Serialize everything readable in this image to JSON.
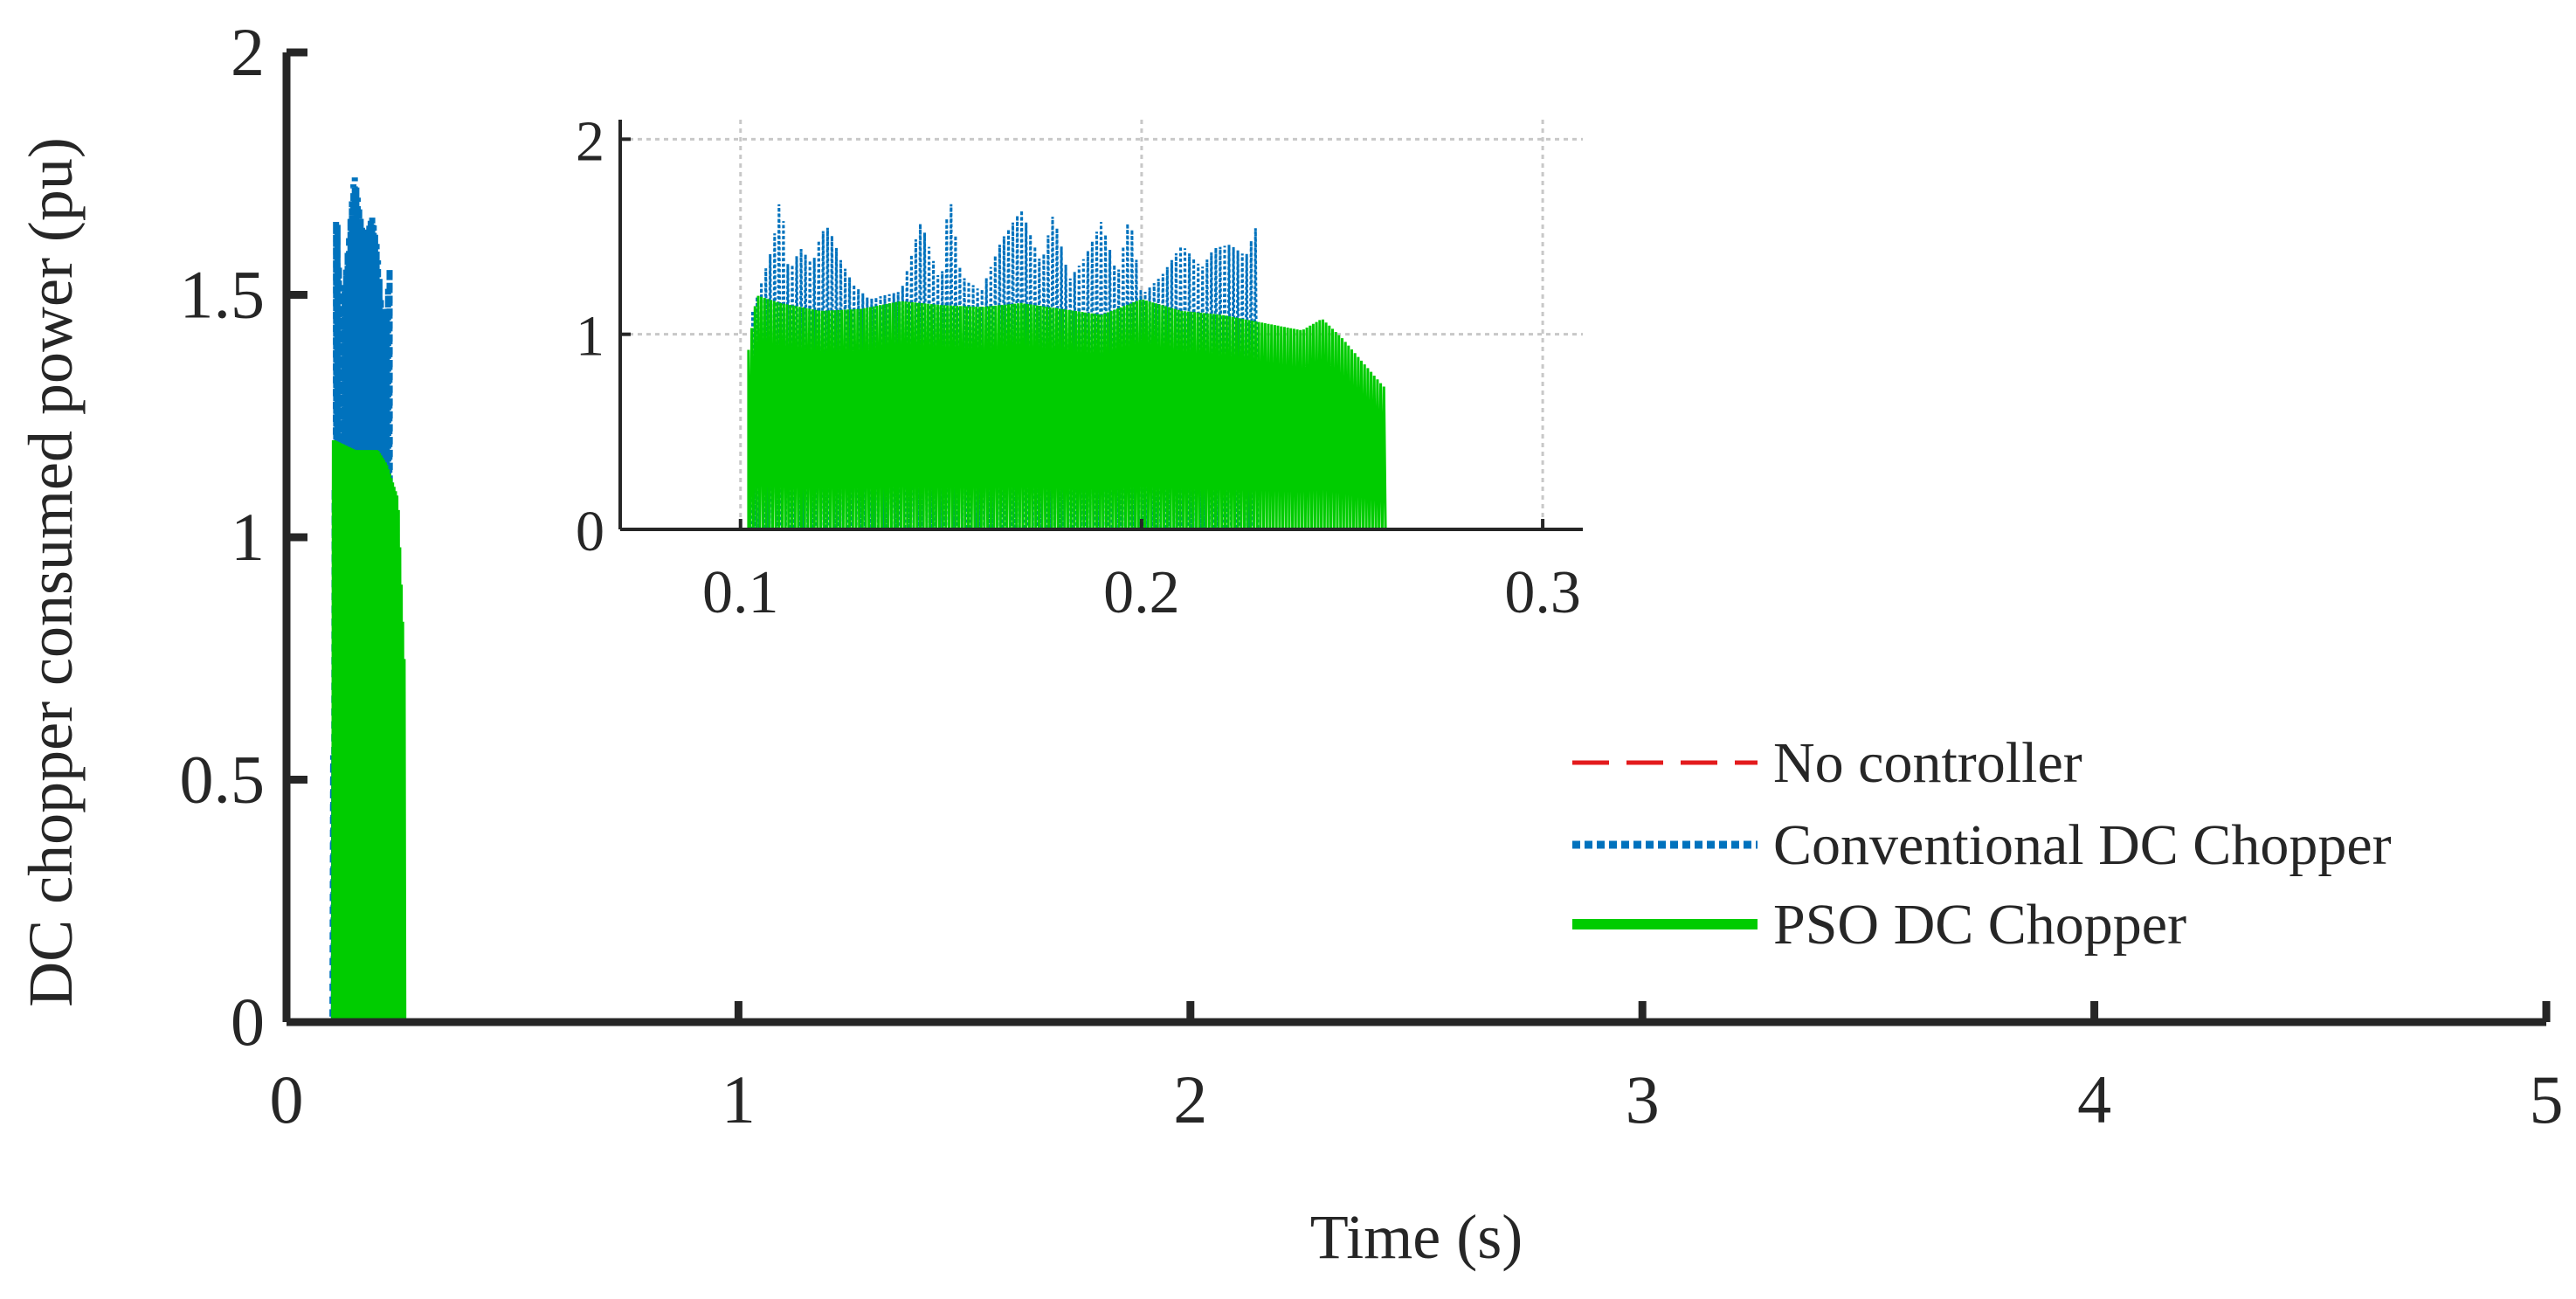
{
  "chart_data": [
    {
      "type": "line",
      "role": "main",
      "title": "",
      "xlabel": "Time (s)",
      "ylabel": "DC chopper consumed power (pu)",
      "xlim": [
        0,
        5
      ],
      "ylim": [
        0,
        2
      ],
      "xticks": [
        0,
        1,
        2,
        3,
        4,
        5
      ],
      "yticks": [
        0,
        0.5,
        1,
        1.5,
        2
      ],
      "xtick_labels": [
        "0",
        "1",
        "2",
        "3",
        "4",
        "5"
      ],
      "ytick_labels": [
        "0",
        "0.5",
        "1",
        "1.5",
        "2"
      ],
      "grid": false,
      "legend": {
        "position": "bottom-right",
        "entries": [
          "No controller",
          "Conventional DC Chopper",
          "PSO DC Chopper"
        ]
      },
      "series": [
        {
          "name": "No controller",
          "color": "#e31a1c",
          "style": "dashed",
          "x": [
            0,
            5
          ],
          "y": [
            0,
            0
          ]
        },
        {
          "name": "Conventional DC Chopper",
          "color": "#0072bd",
          "style": "dotted",
          "x": [
            0,
            0.1,
            0.11,
            0.12,
            0.13,
            0.15,
            0.17,
            0.19,
            0.2,
            0.21,
            0.22,
            0.23,
            0.231,
            5
          ],
          "y": [
            0,
            0,
            1.72,
            1.45,
            1.53,
            1.75,
            1.62,
            1.66,
            1.6,
            1.48,
            1.45,
            1.58,
            0,
            0
          ]
        },
        {
          "name": "PSO DC Chopper",
          "color": "#00cc00",
          "style": "solid",
          "x": [
            0,
            0.102,
            0.105,
            0.15,
            0.2,
            0.22,
            0.245,
            0.26,
            0.262,
            5
          ],
          "y": [
            0,
            0,
            1.2,
            1.18,
            1.18,
            1.15,
            1.08,
            0.72,
            0,
            0
          ]
        }
      ]
    },
    {
      "type": "line",
      "role": "inset",
      "xlim": [
        0.07,
        0.31
      ],
      "ylim": [
        0,
        2.1
      ],
      "xticks": [
        0.1,
        0.2,
        0.3
      ],
      "yticks": [
        0,
        1,
        2
      ],
      "xtick_labels": [
        "0.1",
        "0.2",
        "0.3"
      ],
      "ytick_labels": [
        "0",
        "1",
        "2"
      ],
      "grid": true,
      "series": [
        {
          "name": "No controller",
          "color": "#e31a1c",
          "style": "dashed",
          "x": [
            0.07,
            0.31
          ],
          "y": [
            0,
            0
          ]
        },
        {
          "name": "Conventional DC Chopper",
          "color": "#0072bd",
          "style": "dotted",
          "x": [
            0.103,
            0.108,
            0.11,
            0.112,
            0.115,
            0.118,
            0.12,
            0.122,
            0.125,
            0.128,
            0.132,
            0.14,
            0.145,
            0.15,
            0.152,
            0.155,
            0.16,
            0.165,
            0.17,
            0.175,
            0.178,
            0.182,
            0.186,
            0.19,
            0.194,
            0.197,
            0.2,
            0.205,
            0.21,
            0.215,
            0.218,
            0.222,
            0.226,
            0.229
          ],
          "y": [
            1.12,
            1.45,
            1.72,
            1.32,
            1.44,
            1.36,
            1.52,
            1.55,
            1.38,
            1.26,
            1.18,
            1.22,
            1.58,
            1.25,
            1.74,
            1.3,
            1.22,
            1.48,
            1.64,
            1.36,
            1.62,
            1.28,
            1.4,
            1.58,
            1.3,
            1.62,
            1.2,
            1.3,
            1.46,
            1.34,
            1.44,
            1.46,
            1.4,
            1.58
          ]
        },
        {
          "name": "PSO DC Chopper",
          "color": "#00cc00",
          "style": "solid",
          "x": [
            0.102,
            0.104,
            0.11,
            0.12,
            0.13,
            0.14,
            0.15,
            0.16,
            0.17,
            0.18,
            0.19,
            0.2,
            0.21,
            0.22,
            0.23,
            0.24,
            0.245,
            0.25,
            0.255,
            0.26,
            0.261
          ],
          "y": [
            0.92,
            1.2,
            1.16,
            1.12,
            1.13,
            1.17,
            1.15,
            1.14,
            1.16,
            1.13,
            1.1,
            1.18,
            1.12,
            1.1,
            1.06,
            1.02,
            1.08,
            0.98,
            0.86,
            0.74,
            0.72
          ]
        }
      ]
    }
  ]
}
